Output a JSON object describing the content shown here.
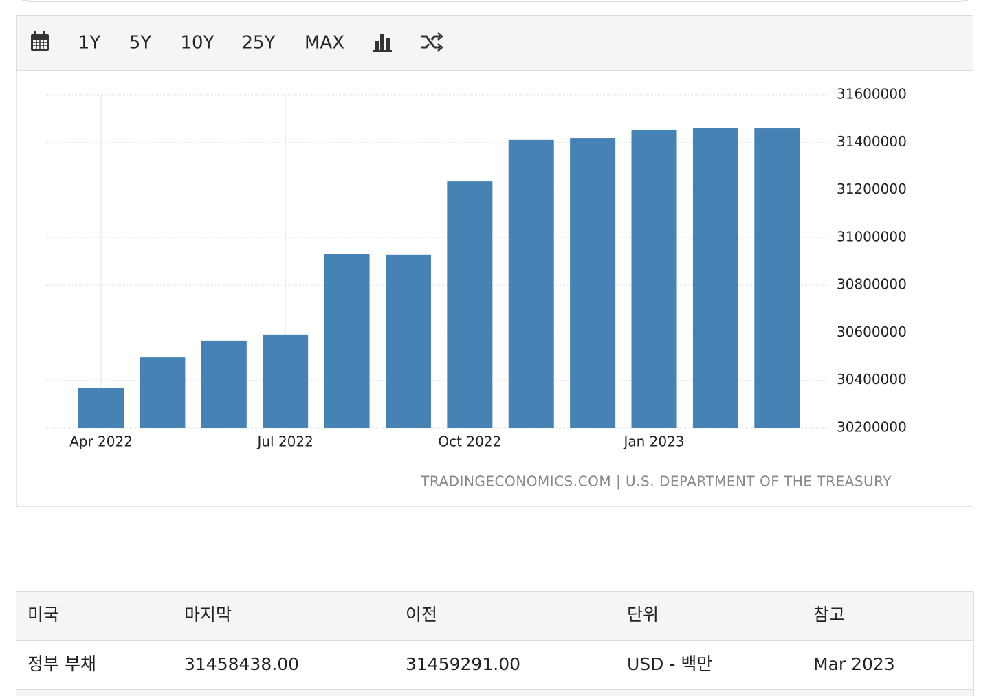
{
  "toolbar": {
    "buttons": [
      "1Y",
      "5Y",
      "10Y",
      "25Y",
      "MAX"
    ]
  },
  "chart_data": {
    "type": "bar",
    "categories": [
      "Apr 2022",
      null,
      null,
      "Jul 2022",
      null,
      null,
      "Oct 2022",
      null,
      null,
      "Jan 2023",
      null,
      null
    ],
    "values": [
      30370000,
      30497000,
      30567000,
      30593000,
      30933000,
      30928000,
      31236000,
      31410000,
      31418000,
      31453000,
      31459291,
      31458438
    ],
    "color": "#4682b4",
    "ylim": [
      30200000,
      31600000
    ],
    "yticks": [
      30200000,
      30400000,
      30600000,
      30800000,
      31000000,
      31200000,
      31400000,
      31600000
    ],
    "grid": true
  },
  "source": "TRADINGECONOMICS.COM | U.S. DEPARTMENT OF THE TREASURY",
  "table": {
    "header": [
      "미국",
      "마지막",
      "이전",
      "단위",
      "참고"
    ],
    "rows": [
      [
        "정부 부채",
        "31458438.00",
        "31459291.00",
        "USD - 백만",
        "Mar 2023"
      ]
    ]
  }
}
